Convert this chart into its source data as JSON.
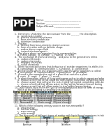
{
  "bg_color": "#ffffff",
  "text_color": "#333333",
  "pdf_bg": "#1a1a1a",
  "pdf_fg": "#ffffff",
  "header_info": [
    "Name: ________________________________",
    "Section: _____________________________",
    "Subject/Strand: _______________________"
  ],
  "questions": [
    "1.  Directions: Underline the best answer from the _______ the description.",
    "    a.  condensate matter",
    "    b.  plasma condensate plasma",
    "    c.  bose-einstein condensate",
    "    d.  quantum condensate",
    "2.  Plasma",
    "    a.  derived from bose-einstein einstein science",
    "    b.  form of matter with no definite shape",
    "    c.  makes dense super fluid",
    "    d.  ionized electromagnetic",
    "3.  The place where are organism live in community/ies",
    "    A. Forest Canopy   B. climate   C. Habitat   D. niche",
    "4.  The exchange of chemical energy    and pass to the generations refers",
    "    a.  carbon chemicals",
    "    b.  carbon chemicals",
    "    c.  nitrogen chemicals",
    "    d.  sulfur chemicals",
    "5.  When we noticed actions that behaviour of another organisms its ability it is called:",
    "    A. camouflage  B. communication  C. symbiosis  D. coexistence",
    "6.  A relationship where one organism gains and the other organism is called:",
    "    A. mutualism   B. commensalism   C. parasitism   D. predation",
    "7.  A seed is the reproductive unit of a plant that contains a plant",
    "    A. roots   B. crops   C. plant   D. seeds",
    "8.  In plant formation, which of living endosperm refers to which organisms/refers, it is necessary to:",
    "    a.  choose a fact that seeds could the roots tightly horizontal completing roots before boring",
    "    b.  choose a part that will give the roots tightly horizontal completing roots before boring",
    "    c.  choose a method that allows water to stay within/between leaves boring",
    "    d.  choose a root that will allow water to stay within leaves boring",
    "10. Table below show the main type of energy produced and the form of energy used in nature.",
    "    Which of the following is completely renewable?"
  ],
  "big_table_headers": [
    "",
    "Energy used as a source",
    "Energy used as a matter",
    "Energy produced"
  ],
  "big_table_hcolors": [
    "#cccccc",
    "#ffffa0",
    "#add8e6",
    "#ffffa0"
  ],
  "big_table_rows": [
    [
      "A",
      "Solar energy",
      "Gravitational energy",
      "Kinetic energy"
    ],
    [
      "B",
      "Wind energy",
      "Mechanical energy",
      "Electrical energy"
    ],
    [
      "C",
      "Heat oil",
      "Chemical energy",
      "Physical of energy"
    ],
    [
      "D",
      "Nuclear energy",
      "Chemical energy",
      "Physical of energy"
    ],
    [
      "E",
      "Nonrenewable",
      "Kinetic energy",
      "Physical of energy"
    ]
  ],
  "q11_lines": [
    "11. Which of the following energy sources are non-renewable?",
    "    a.  wind energy",
    "    b.  nuclear energy",
    "    c.  wave energy",
    "    d.  solar energy",
    "12. The discovery of different types of matter with liquid found organisms in table are shown below:"
  ],
  "small_table_headers": [
    "Solid",
    "Density",
    "Liquid",
    "Density"
  ],
  "small_table_hcolors": [
    "#ffffa0",
    "#add8e6",
    "#ffffa0",
    "#add8e6"
  ],
  "small_table_rows": [
    [
      "Wood",
      "0.5",
      "Gasoline",
      "0.66"
    ],
    [
      "Ice",
      "0.9",
      "Ethanol",
      "0.79"
    ],
    [
      "Rock",
      "2.5",
      "Water",
      "1.0"
    ],
    [
      "Aluminum",
      "2.7",
      "Chloroform",
      "1.5"
    ]
  ]
}
